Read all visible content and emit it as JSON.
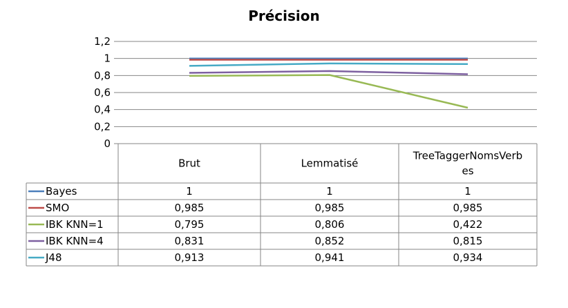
{
  "chart_data": {
    "type": "line",
    "title": "Précision",
    "categories": [
      "Brut",
      "Lemmatisé",
      "TreeTaggerNomsVerbes"
    ],
    "category_lines": [
      [
        "Brut"
      ],
      [
        "Lemmatisé"
      ],
      [
        "TreeTaggerNomsVerb",
        "es"
      ]
    ],
    "yticks": [
      "0",
      "0,2",
      "0,4",
      "0,6",
      "0,8",
      "1",
      "1,2"
    ],
    "ylim": [
      0,
      1.2
    ],
    "grid": true,
    "legend": "data-table",
    "series": [
      {
        "name": "Bayes",
        "color": "#4a7ebb",
        "values": [
          1,
          1,
          1
        ],
        "labels": [
          "1",
          "1",
          "1"
        ]
      },
      {
        "name": "SMO",
        "color": "#be4b48",
        "values": [
          0.985,
          0.985,
          0.985
        ],
        "labels": [
          "0,985",
          "0,985",
          "0,985"
        ]
      },
      {
        "name": "IBK KNN=1",
        "color": "#98b954",
        "values": [
          0.795,
          0.806,
          0.422
        ],
        "labels": [
          "0,795",
          "0,806",
          "0,422"
        ]
      },
      {
        "name": "IBK KNN=4",
        "color": "#7d60a0",
        "values": [
          0.831,
          0.852,
          0.815
        ],
        "labels": [
          "0,831",
          "0,852",
          "0,815"
        ]
      },
      {
        "name": "J48",
        "color": "#46aac5",
        "values": [
          0.913,
          0.941,
          0.934
        ],
        "labels": [
          "0,913",
          "0,941",
          "0,934"
        ]
      }
    ]
  }
}
